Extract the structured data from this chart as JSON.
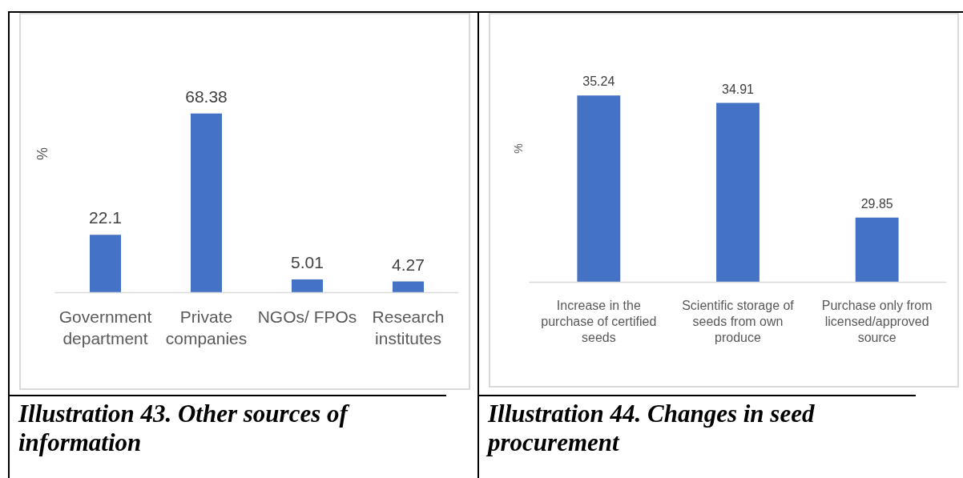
{
  "chart_data": [
    {
      "type": "bar",
      "title": "Illustration 43. Other sources of information",
      "ylabel": "%",
      "categories": [
        "Government department",
        "Private companies",
        "NGOs/ FPOs",
        "Research institutes"
      ],
      "values": [
        22.1,
        68.38,
        5.01,
        4.27
      ],
      "color": "#4472c4",
      "ylim": [
        0,
        106
      ],
      "data_labels": true,
      "tick_labels": "x"
    },
    {
      "type": "bar",
      "title": "Illustration 44. Changes in seed procurement",
      "ylabel": "%",
      "categories": [
        "Increase in the purchase of certified seeds",
        "Scientific storage of seeds from own produce",
        "Purchase only from licensed/approved source"
      ],
      "values": [
        35.24,
        34.91,
        29.85
      ],
      "color": "#4472c4",
      "ylim": [
        27,
        38.8
      ],
      "data_labels": true,
      "tick_labels": "x"
    }
  ]
}
